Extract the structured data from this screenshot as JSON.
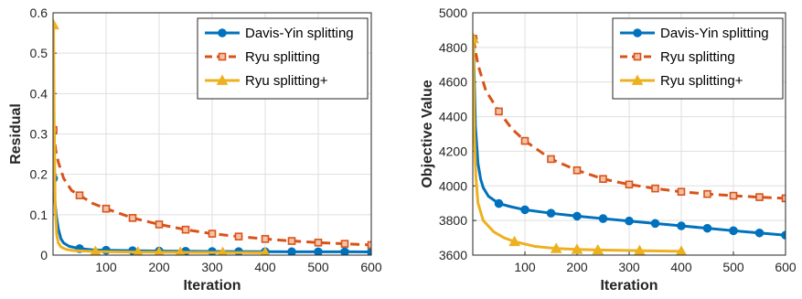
{
  "chart_data": [
    {
      "type": "line",
      "xlabel": "Iteration",
      "ylabel": "Residual",
      "xlim": [
        0,
        600
      ],
      "ylim": [
        0,
        0.6
      ],
      "xticks": [
        100,
        200,
        300,
        400,
        500,
        600
      ],
      "yticks": [
        0,
        0.1,
        0.2,
        0.3,
        0.4,
        0.5,
        0.6
      ],
      "grid": true,
      "legend_position": "top-right",
      "series": [
        {
          "name": "Davis-Yin splitting",
          "color": "#0072BD",
          "line_style": "solid",
          "marker": "circle",
          "x": [
            1,
            3,
            6,
            10,
            15,
            20,
            30,
            50,
            75,
            100,
            150,
            200,
            250,
            300,
            350,
            400,
            450,
            500,
            550,
            600
          ],
          "y": [
            0.19,
            0.14,
            0.1,
            0.065,
            0.04,
            0.03,
            0.022,
            0.016,
            0.013,
            0.012,
            0.011,
            0.01,
            0.0095,
            0.009,
            0.0088,
            0.0085,
            0.0083,
            0.0082,
            0.0081,
            0.008
          ]
        },
        {
          "name": "Ryu splitting",
          "color": "#D95319",
          "line_style": "dashed",
          "marker": "square",
          "x": [
            1,
            5,
            10,
            20,
            35,
            50,
            75,
            100,
            150,
            200,
            250,
            300,
            350,
            400,
            450,
            500,
            550,
            600
          ],
          "y": [
            0.31,
            0.26,
            0.23,
            0.19,
            0.16,
            0.148,
            0.128,
            0.115,
            0.092,
            0.076,
            0.063,
            0.053,
            0.046,
            0.04,
            0.035,
            0.031,
            0.028,
            0.025
          ]
        },
        {
          "name": "Ryu splitting+",
          "color": "#EDB120",
          "line_style": "solid",
          "marker": "triangle",
          "x": [
            1,
            2,
            4,
            7,
            10,
            15,
            25,
            40,
            80,
            120,
            160,
            200,
            240,
            280,
            320,
            360,
            400
          ],
          "y": [
            0.57,
            0.35,
            0.12,
            0.05,
            0.03,
            0.02,
            0.014,
            0.011,
            0.009,
            0.008,
            0.0075,
            0.007,
            0.0068,
            0.0066,
            0.0064,
            0.0062,
            0.006
          ]
        }
      ]
    },
    {
      "type": "line",
      "xlabel": "Iteration",
      "ylabel": "Objective Value",
      "xlim": [
        0,
        600
      ],
      "ylim": [
        3600,
        5000
      ],
      "xticks": [
        100,
        200,
        300,
        400,
        500,
        600
      ],
      "yticks": [
        3600,
        3800,
        4000,
        4200,
        4400,
        4600,
        4800,
        5000
      ],
      "grid": true,
      "legend_position": "top-right",
      "series": [
        {
          "name": "Davis-Yin splitting",
          "color": "#0072BD",
          "line_style": "solid",
          "marker": "circle",
          "x": [
            1,
            5,
            10,
            15,
            20,
            30,
            50,
            75,
            100,
            150,
            200,
            250,
            300,
            350,
            400,
            450,
            500,
            550,
            600
          ],
          "y": [
            4850,
            4350,
            4130,
            4040,
            3990,
            3940,
            3898,
            3878,
            3862,
            3842,
            3825,
            3811,
            3797,
            3783,
            3769,
            3755,
            3741,
            3728,
            3715
          ]
        },
        {
          "name": "Ryu splitting",
          "color": "#D95319",
          "line_style": "dashed",
          "marker": "square",
          "x": [
            1,
            10,
            25,
            50,
            75,
            100,
            150,
            200,
            250,
            300,
            350,
            400,
            450,
            500,
            550,
            600
          ],
          "y": [
            4850,
            4700,
            4550,
            4430,
            4330,
            4260,
            4155,
            4090,
            4040,
            4008,
            3985,
            3966,
            3953,
            3943,
            3935,
            3928
          ]
        },
        {
          "name": "Ryu splitting+",
          "color": "#EDB120",
          "line_style": "solid",
          "marker": "triangle",
          "x": [
            1,
            3,
            6,
            10,
            20,
            40,
            60,
            80,
            120,
            160,
            200,
            240,
            280,
            320,
            360,
            400
          ],
          "y": [
            4850,
            4300,
            4050,
            3900,
            3800,
            3735,
            3700,
            3678,
            3650,
            3638,
            3633,
            3630,
            3628,
            3626,
            3624,
            3622
          ]
        }
      ]
    }
  ]
}
